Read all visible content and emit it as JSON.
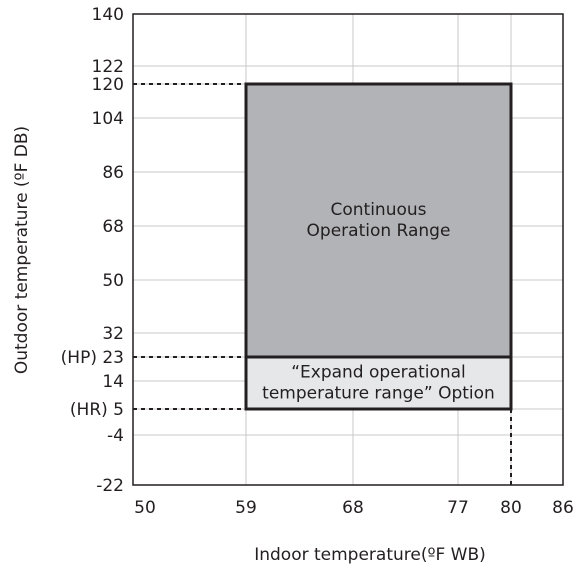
{
  "chart_data": {
    "type": "range",
    "xlabel": "Indoor temperature(ºF WB)",
    "ylabel": "Outdoor temperature (ºF DB)",
    "xlim": [
      50,
      86
    ],
    "ylim": [
      -22,
      140
    ],
    "xticks": [
      50,
      59,
      68,
      77,
      80,
      86
    ],
    "yticks": [
      -22,
      -4,
      {
        "value": 5,
        "label": "(HR)  5"
      },
      14,
      {
        "value": 23,
        "label": "(HP) 23"
      },
      32,
      50,
      68,
      86,
      104,
      120,
      122,
      140
    ],
    "grid": true,
    "regions": [
      {
        "lines": [
          "Continuous",
          "Operation Range"
        ],
        "x": [
          59,
          80
        ],
        "y": [
          23,
          120
        ],
        "color": "#b1b3b6"
      },
      {
        "lines": [
          "“Expand operational",
          "temperature range” Option"
        ],
        "x": [
          59,
          80
        ],
        "y": [
          5,
          23
        ],
        "color": "#e6e7e8"
      }
    ]
  }
}
